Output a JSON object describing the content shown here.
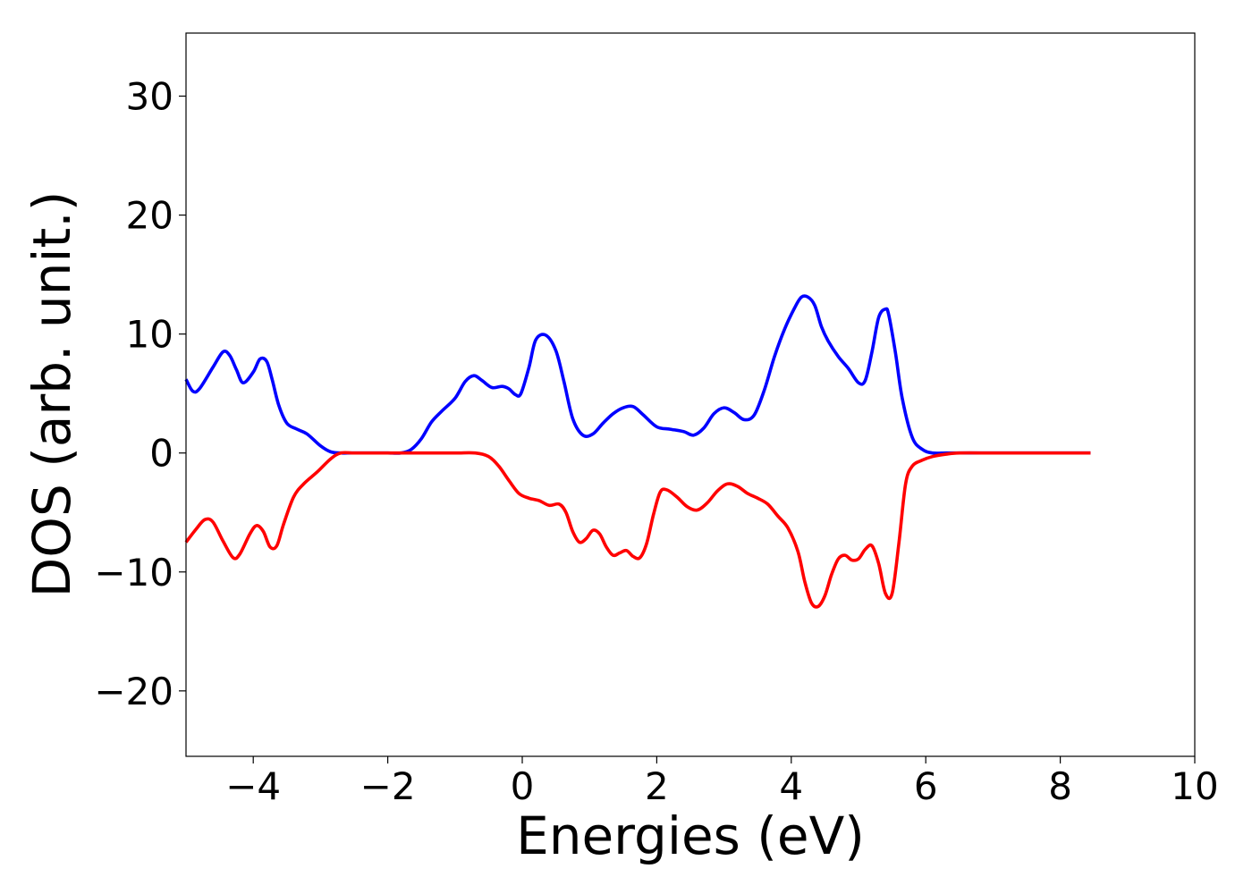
{
  "chart_data": {
    "type": "line",
    "title": "",
    "xlabel": "Energies (eV)",
    "ylabel": "DOS (arb. unit.)",
    "xlim": [
      -5,
      10
    ],
    "ylim": [
      -25.5,
      35.3
    ],
    "xticks": [
      -4,
      -2,
      0,
      2,
      4,
      6,
      8,
      10
    ],
    "yticks": [
      -20,
      -10,
      0,
      10,
      20,
      30
    ],
    "xtick_labels": [
      "−4",
      "−2",
      "0",
      "2",
      "4",
      "6",
      "8",
      "10"
    ],
    "ytick_labels": [
      "−20",
      "−10",
      "0",
      "10",
      "20",
      "30"
    ],
    "grid": false,
    "legend": "none",
    "series": [
      {
        "color": "#0000ff",
        "x": [
          -5.0,
          -4.9,
          -4.8,
          -4.6,
          -4.45,
          -4.35,
          -4.25,
          -4.15,
          -4.0,
          -3.9,
          -3.8,
          -3.72,
          -3.62,
          -3.5,
          -3.35,
          -3.2,
          -3.0,
          -2.85,
          -2.7,
          -2.55,
          -2.4,
          -2.2,
          -2.0,
          -1.8,
          -1.65,
          -1.5,
          -1.35,
          -1.2,
          -1.0,
          -0.85,
          -0.72,
          -0.6,
          -0.45,
          -0.3,
          -0.2,
          -0.1,
          -0.02,
          0.1,
          0.2,
          0.35,
          0.5,
          0.62,
          0.75,
          0.9,
          1.05,
          1.2,
          1.35,
          1.5,
          1.65,
          1.8,
          2.0,
          2.2,
          2.4,
          2.55,
          2.7,
          2.85,
          3.0,
          3.15,
          3.3,
          3.45,
          3.6,
          3.75,
          3.9,
          4.05,
          4.15,
          4.25,
          4.35,
          4.45,
          4.55,
          4.7,
          4.85,
          5.0,
          5.1,
          5.2,
          5.3,
          5.4,
          5.45,
          5.55,
          5.65,
          5.8,
          5.95,
          6.1,
          6.3,
          6.5,
          7.0,
          7.5,
          8.0,
          8.45
        ],
        "y": [
          6.2,
          5.2,
          5.4,
          7.2,
          8.5,
          8.2,
          7.0,
          5.9,
          6.8,
          7.9,
          7.7,
          6.2,
          4.0,
          2.5,
          2.0,
          1.6,
          0.6,
          0.1,
          0.0,
          0.0,
          0.0,
          0.0,
          0.0,
          0.0,
          0.3,
          1.2,
          2.6,
          3.5,
          4.6,
          6.0,
          6.5,
          6.1,
          5.5,
          5.6,
          5.4,
          4.9,
          5.0,
          7.2,
          9.5,
          9.9,
          8.6,
          6.0,
          2.9,
          1.5,
          1.6,
          2.5,
          3.3,
          3.8,
          3.9,
          3.2,
          2.2,
          2.0,
          1.8,
          1.5,
          2.1,
          3.3,
          3.8,
          3.4,
          2.8,
          3.2,
          5.3,
          8.1,
          10.4,
          12.2,
          13.1,
          13.1,
          12.4,
          10.6,
          9.4,
          8.1,
          7.1,
          5.9,
          6.1,
          8.5,
          11.4,
          12.1,
          11.6,
          8.4,
          4.6,
          1.3,
          0.3,
          0.0,
          0.0,
          0.0,
          0.0,
          0.0,
          0.0,
          0.0
        ]
      },
      {
        "color": "#ff0000",
        "x": [
          -5.0,
          -4.85,
          -4.72,
          -4.6,
          -4.45,
          -4.3,
          -4.2,
          -4.05,
          -3.95,
          -3.85,
          -3.75,
          -3.65,
          -3.55,
          -3.4,
          -3.25,
          -3.05,
          -2.85,
          -2.7,
          -2.5,
          -2.2,
          -2.0,
          -1.5,
          -1.0,
          -0.7,
          -0.5,
          -0.35,
          -0.2,
          -0.05,
          0.1,
          0.25,
          0.4,
          0.55,
          0.65,
          0.75,
          0.85,
          0.95,
          1.05,
          1.15,
          1.25,
          1.35,
          1.45,
          1.55,
          1.65,
          1.75,
          1.85,
          1.95,
          2.05,
          2.15,
          2.3,
          2.45,
          2.6,
          2.75,
          2.9,
          3.05,
          3.2,
          3.35,
          3.5,
          3.65,
          3.8,
          3.95,
          4.1,
          4.2,
          4.3,
          4.4,
          4.5,
          4.6,
          4.7,
          4.8,
          4.9,
          5.0,
          5.1,
          5.2,
          5.3,
          5.4,
          5.5,
          5.6,
          5.7,
          5.8,
          5.95,
          6.1,
          6.3,
          6.5,
          7.0,
          7.5,
          8.0,
          8.45
        ],
        "y": [
          -7.5,
          -6.4,
          -5.6,
          -5.8,
          -7.4,
          -8.8,
          -8.5,
          -6.8,
          -6.1,
          -6.6,
          -7.9,
          -7.8,
          -6.0,
          -3.7,
          -2.6,
          -1.6,
          -0.5,
          0.0,
          0.0,
          0.0,
          0.0,
          0.0,
          0.0,
          0.0,
          -0.3,
          -1.1,
          -2.3,
          -3.4,
          -3.8,
          -4.0,
          -4.4,
          -4.3,
          -5.0,
          -6.6,
          -7.5,
          -7.2,
          -6.5,
          -6.8,
          -7.9,
          -8.6,
          -8.4,
          -8.2,
          -8.7,
          -8.8,
          -7.6,
          -5.2,
          -3.3,
          -3.1,
          -3.7,
          -4.5,
          -4.8,
          -4.2,
          -3.2,
          -2.6,
          -2.8,
          -3.4,
          -3.8,
          -4.3,
          -5.3,
          -6.3,
          -8.3,
          -10.8,
          -12.6,
          -12.9,
          -12.0,
          -10.2,
          -8.9,
          -8.6,
          -9.0,
          -8.9,
          -8.1,
          -7.8,
          -9.3,
          -11.8,
          -11.8,
          -7.6,
          -2.6,
          -1.1,
          -0.6,
          -0.3,
          -0.1,
          0.0,
          0.0,
          0.0,
          0.0,
          0.0
        ]
      }
    ]
  }
}
